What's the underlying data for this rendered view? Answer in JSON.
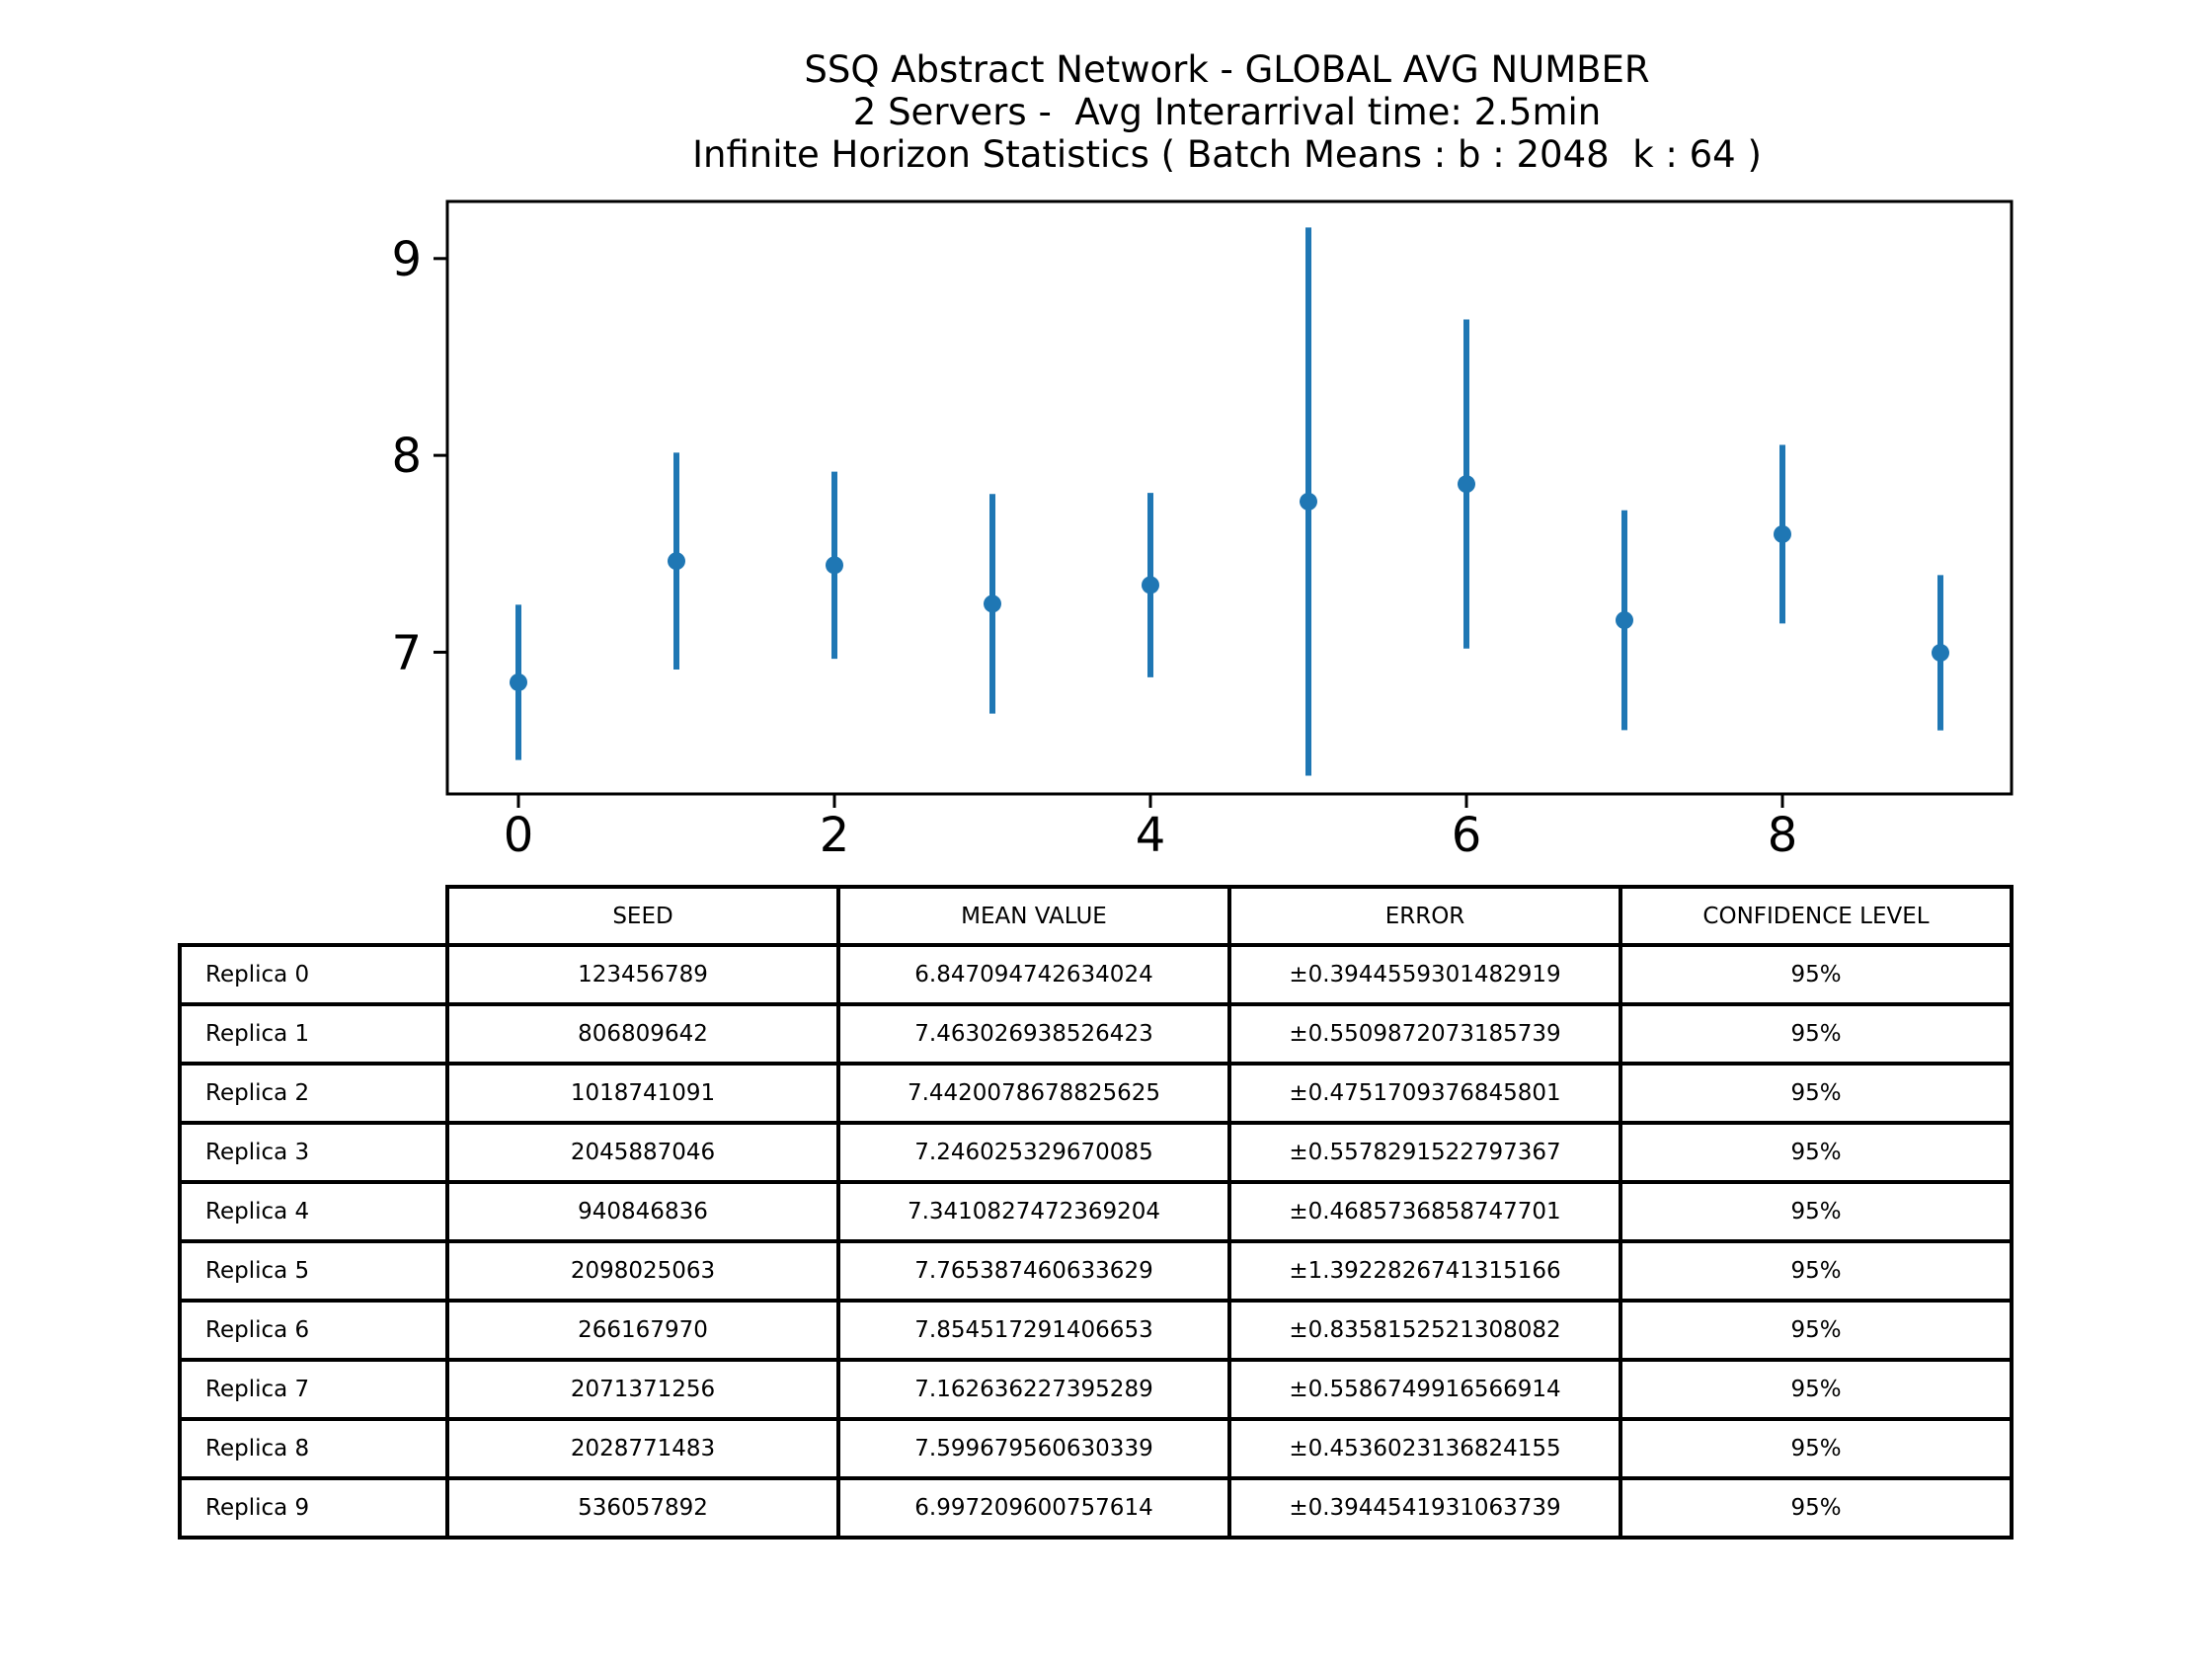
{
  "chart_data": {
    "type": "scatter",
    "style": "errorbar",
    "color": "#1f77b4",
    "title": [
      "SSQ Abstract Network - GLOBAL AVG NUMBER",
      "2 Servers -  Avg Interarrival time: 2.5min",
      "Infinite Horizon Statistics ( Batch Means : b : 2048  k : 64 )"
    ],
    "xlabel": "",
    "ylabel": "",
    "x": [
      0,
      1,
      2,
      3,
      4,
      5,
      6,
      7,
      8,
      9
    ],
    "y": [
      6.847094742634024,
      7.463026938526423,
      7.4420078678825625,
      7.246025329670085,
      7.3410827472369204,
      7.765387460633629,
      7.854517291406653,
      7.162636227395289,
      7.599679560630339,
      6.997209600757614
    ],
    "yerr": [
      0.3944559301482919,
      0.5509872073185739,
      0.4751709376845801,
      0.5578291522797367,
      0.4685736858747701,
      1.3922826741315166,
      0.8358152521308082,
      0.5586749916566914,
      0.4536023136824155,
      0.3944541931063739
    ],
    "xlim": [
      -0.45,
      9.45
    ],
    "ylim": [
      6.28,
      9.29
    ],
    "xticks": [
      0,
      2,
      4,
      6,
      8
    ],
    "yticks": [
      7,
      8,
      9
    ],
    "grid": false,
    "legend": "none",
    "table": {
      "col_labels": [
        "SEED",
        "MEAN VALUE",
        "ERROR",
        "CONFIDENCE LEVEL"
      ],
      "rows": [
        {
          "label": "Replica 0",
          "cells": [
            "123456789",
            "6.847094742634024",
            "±0.3944559301482919",
            "95%"
          ]
        },
        {
          "label": "Replica 1",
          "cells": [
            "806809642",
            "7.463026938526423",
            "±0.5509872073185739",
            "95%"
          ]
        },
        {
          "label": "Replica 2",
          "cells": [
            "1018741091",
            "7.4420078678825625",
            "±0.4751709376845801",
            "95%"
          ]
        },
        {
          "label": "Replica 3",
          "cells": [
            "2045887046",
            "7.246025329670085",
            "±0.5578291522797367",
            "95%"
          ]
        },
        {
          "label": "Replica 4",
          "cells": [
            "940846836",
            "7.3410827472369204",
            "±0.4685736858747701",
            "95%"
          ]
        },
        {
          "label": "Replica 5",
          "cells": [
            "2098025063",
            "7.765387460633629",
            "±1.3922826741315166",
            "95%"
          ]
        },
        {
          "label": "Replica 6",
          "cells": [
            "266167970",
            "7.854517291406653",
            "±0.8358152521308082",
            "95%"
          ]
        },
        {
          "label": "Replica 7",
          "cells": [
            "2071371256",
            "7.162636227395289",
            "±0.5586749916566914",
            "95%"
          ]
        },
        {
          "label": "Replica 8",
          "cells": [
            "2028771483",
            "7.599679560630339",
            "±0.4536023136824155",
            "95%"
          ]
        },
        {
          "label": "Replica 9",
          "cells": [
            "536057892",
            "6.997209600757614",
            "±0.3944541931063739",
            "95%"
          ]
        }
      ]
    }
  }
}
